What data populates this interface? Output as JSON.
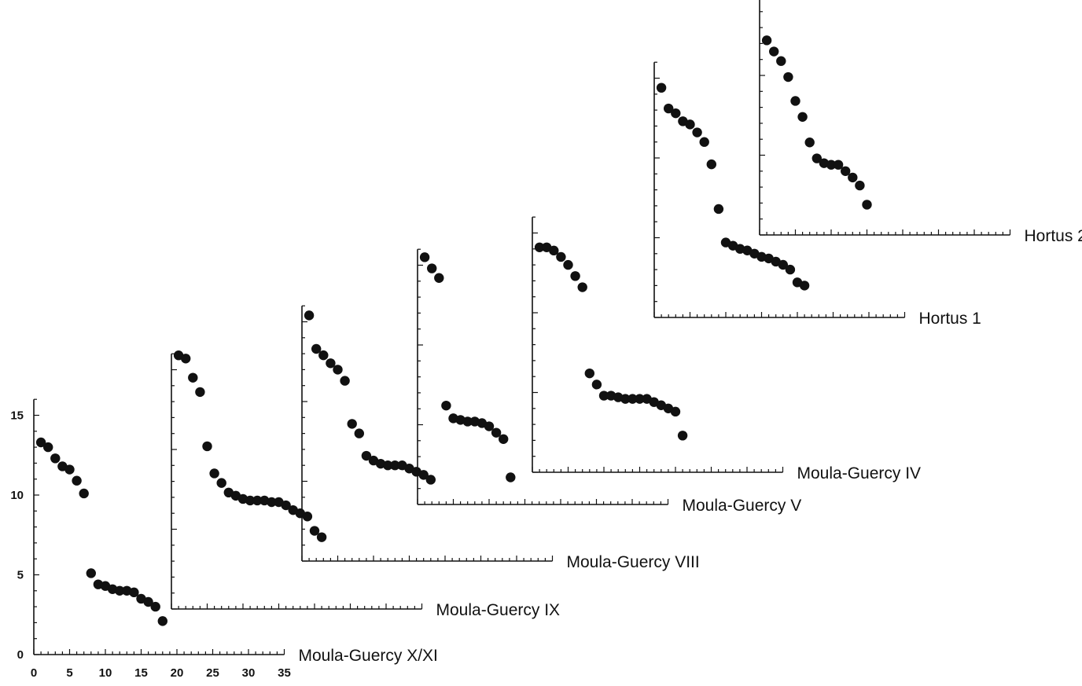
{
  "chart_data": [
    {
      "type": "scatter",
      "label": "Moula-Guercy X/XI",
      "xlim": [
        0,
        35
      ],
      "ylim": [
        0,
        16
      ],
      "xticks": [
        "0",
        "5",
        "10",
        "15",
        "20",
        "25",
        "30",
        "35"
      ],
      "yticks": [
        "0",
        "5",
        "10",
        "15"
      ],
      "x": [
        1,
        2,
        3,
        4,
        5,
        6,
        7,
        8,
        9,
        10,
        11,
        12,
        13,
        14,
        15,
        16,
        17,
        18
      ],
      "y": [
        13.3,
        13.0,
        12.3,
        11.8,
        11.6,
        10.9,
        10.1,
        5.1,
        4.4,
        4.3,
        4.1,
        4.0,
        4.0,
        3.9,
        3.5,
        3.3,
        3.0,
        2.1
      ]
    },
    {
      "type": "scatter",
      "label": "Moula-Guercy IX",
      "xlim": [
        0,
        35
      ],
      "ylim": [
        0,
        16
      ],
      "x": [
        1,
        2,
        3,
        4,
        5,
        6,
        7,
        8,
        9,
        10,
        11,
        12,
        13,
        14,
        15,
        16,
        17,
        18,
        19,
        20,
        21
      ],
      "y": [
        15.9,
        15.7,
        14.5,
        13.6,
        10.2,
        8.5,
        7.9,
        7.3,
        7.1,
        6.9,
        6.8,
        6.8,
        6.8,
        6.7,
        6.7,
        6.5,
        6.2,
        6.0,
        5.8,
        4.9,
        4.5
      ]
    },
    {
      "type": "scatter",
      "label": "Moula-Guercy VIII",
      "xlim": [
        0,
        35
      ],
      "ylim": [
        0,
        16
      ],
      "x": [
        1,
        2,
        3,
        4,
        5,
        6,
        7,
        8,
        9,
        10,
        11,
        12,
        13,
        14,
        15,
        16,
        17,
        18
      ],
      "y": [
        15.4,
        13.3,
        12.9,
        12.4,
        12.0,
        11.3,
        8.6,
        8.0,
        6.6,
        6.3,
        6.1,
        6.0,
        6.0,
        6.0,
        5.8,
        5.6,
        5.4,
        5.1
      ]
    },
    {
      "type": "scatter",
      "label": "Moula-Guercy V",
      "xlim": [
        0,
        35
      ],
      "ylim": [
        0,
        16
      ],
      "x": [
        1,
        2,
        3,
        4,
        5,
        6,
        7,
        8,
        9,
        10,
        11,
        12,
        13
      ],
      "y": [
        15.5,
        14.8,
        14.2,
        6.2,
        5.4,
        5.3,
        5.2,
        5.2,
        5.1,
        4.9,
        4.5,
        4.1,
        1.7
      ]
    },
    {
      "type": "scatter",
      "label": "Moula-Guercy IV",
      "xlim": [
        0,
        35
      ],
      "ylim": [
        0,
        16
      ],
      "x": [
        1,
        2,
        3,
        4,
        5,
        6,
        7,
        8,
        9,
        10,
        11,
        12,
        13,
        14,
        15,
        16,
        17,
        18,
        19,
        20,
        21
      ],
      "y": [
        14.1,
        14.1,
        13.9,
        13.5,
        13.0,
        12.3,
        11.6,
        6.2,
        5.5,
        4.8,
        4.8,
        4.7,
        4.6,
        4.6,
        4.6,
        4.6,
        4.4,
        4.2,
        4.0,
        3.8,
        2.3
      ]
    },
    {
      "type": "scatter",
      "label": "Hortus 1",
      "xlim": [
        0,
        35
      ],
      "ylim": [
        0,
        16
      ],
      "x": [
        1,
        2,
        3,
        4,
        5,
        6,
        7,
        8,
        9,
        10,
        11,
        12,
        13,
        14,
        15,
        16,
        17,
        18,
        19,
        20,
        21
      ],
      "y": [
        14.4,
        13.1,
        12.8,
        12.3,
        12.1,
        11.6,
        11.0,
        9.6,
        6.8,
        4.7,
        4.5,
        4.3,
        4.2,
        4.0,
        3.8,
        3.7,
        3.5,
        3.3,
        3.0,
        2.2,
        2.0
      ]
    },
    {
      "type": "scatter",
      "label": "Hortus 2",
      "xlim": [
        0,
        35
      ],
      "ylim": [
        0,
        16
      ],
      "x": [
        1,
        2,
        3,
        4,
        5,
        6,
        7,
        8,
        9,
        10,
        11,
        12,
        13,
        14,
        15
      ],
      "y": [
        12.2,
        11.5,
        10.9,
        9.9,
        8.4,
        7.4,
        5.8,
        4.8,
        4.5,
        4.4,
        4.4,
        4.0,
        3.6,
        3.1,
        1.9
      ]
    }
  ]
}
